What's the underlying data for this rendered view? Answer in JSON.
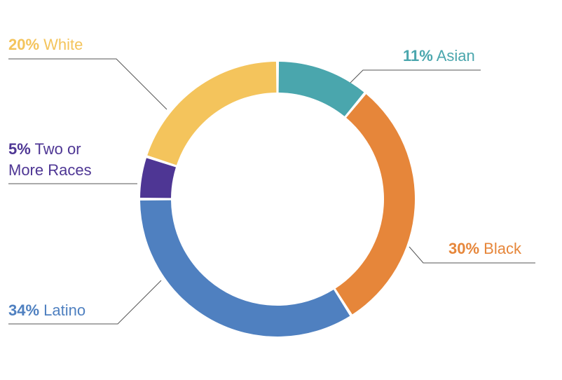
{
  "chart_data": {
    "type": "pie",
    "title": "",
    "donut": true,
    "slices": [
      {
        "name": "Asian",
        "pct_label": "11%",
        "value": 11,
        "color": "#4aa6ad"
      },
      {
        "name": "Black",
        "pct_label": "30%",
        "value": 30,
        "color": "#e6863a"
      },
      {
        "name": "Latino",
        "pct_label": "34%",
        "value": 34,
        "color": "#4f80c0"
      },
      {
        "name": "Two or More Races",
        "name_line1": "Two or",
        "name_line2": "More Races",
        "pct_label": "5%",
        "value": 5,
        "color": "#4e3694"
      },
      {
        "name": "White",
        "pct_label": "20%",
        "value": 20,
        "color": "#f4c45c"
      }
    ]
  }
}
